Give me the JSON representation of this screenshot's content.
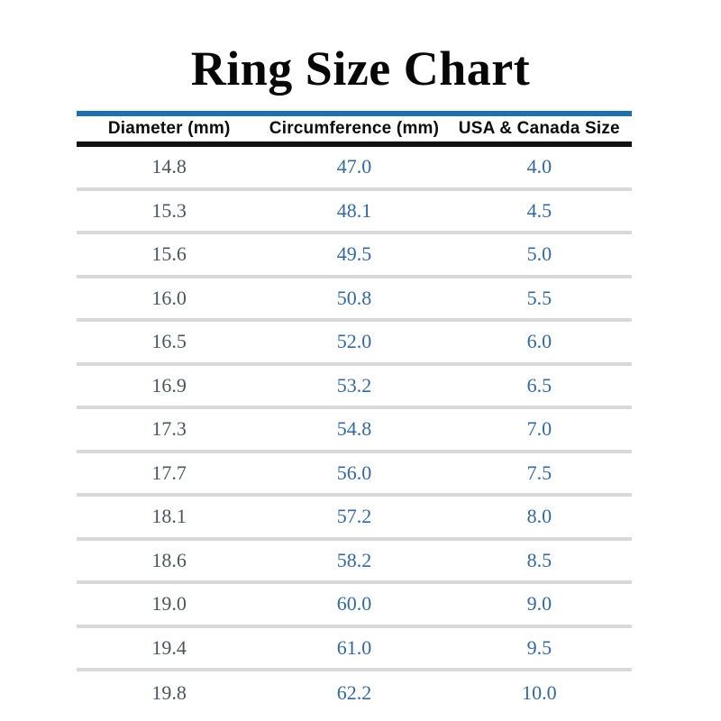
{
  "page": {
    "title": "Ring Size Chart"
  },
  "table": {
    "columns": [
      "Diameter (mm)",
      "Circumference (mm)",
      "USA & Canada Size"
    ],
    "rows": [
      [
        "14.8",
        "47.0",
        "4.0"
      ],
      [
        "15.3",
        "48.1",
        "4.5"
      ],
      [
        "15.6",
        "49.5",
        "5.0"
      ],
      [
        "16.0",
        "50.8",
        "5.5"
      ],
      [
        "16.5",
        "52.0",
        "6.0"
      ],
      [
        "16.9",
        "53.2",
        "6.5"
      ],
      [
        "17.3",
        "54.8",
        "7.0"
      ],
      [
        "17.7",
        "56.0",
        "7.5"
      ],
      [
        "18.1",
        "57.2",
        "8.0"
      ],
      [
        "18.6",
        "58.2",
        "8.5"
      ],
      [
        "19.0",
        "60.0",
        "9.0"
      ],
      [
        "19.4",
        "61.0",
        "9.5"
      ],
      [
        "19.8",
        "62.2",
        "10.0"
      ]
    ]
  },
  "colors": {
    "rule_blue": "#1e6fae",
    "rule_black": "#121212",
    "separator_gray": "#d9d9d9",
    "diameter_text": "#4b555b",
    "value_blue": "#34699f",
    "header_text": "#0c0c0c",
    "title_text": "#070707"
  },
  "chart_data": {
    "type": "table",
    "title": "Ring Size Chart",
    "columns": [
      "Diameter (mm)",
      "Circumference (mm)",
      "USA & Canada Size"
    ],
    "rows": [
      [
        14.8,
        47.0,
        4.0
      ],
      [
        15.3,
        48.1,
        4.5
      ],
      [
        15.6,
        49.5,
        5.0
      ],
      [
        16.0,
        50.8,
        5.5
      ],
      [
        16.5,
        52.0,
        6.0
      ],
      [
        16.9,
        53.2,
        6.5
      ],
      [
        17.3,
        54.8,
        7.0
      ],
      [
        17.7,
        56.0,
        7.5
      ],
      [
        18.1,
        57.2,
        8.0
      ],
      [
        18.6,
        58.2,
        8.5
      ],
      [
        19.0,
        60.0,
        9.0
      ],
      [
        19.4,
        61.0,
        9.5
      ],
      [
        19.8,
        62.2,
        10.0
      ]
    ]
  }
}
